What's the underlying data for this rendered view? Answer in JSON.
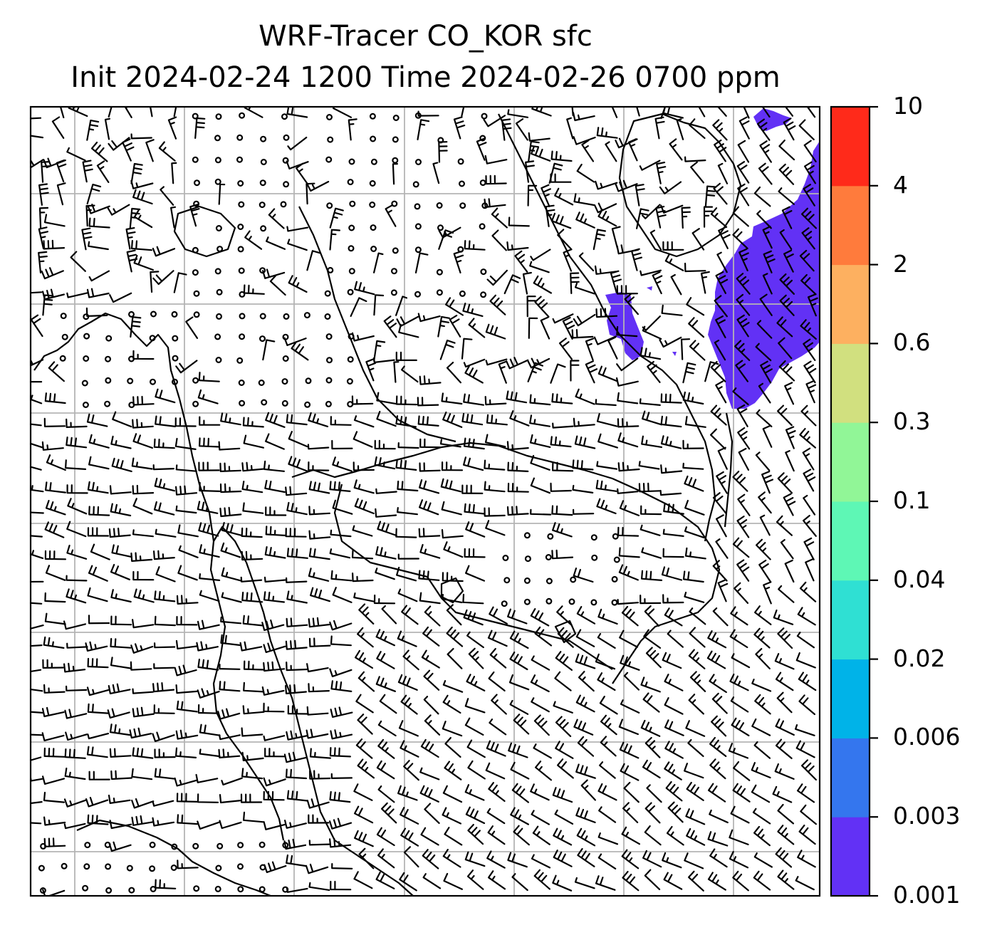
{
  "title": {
    "line1": "WRF-Tracer CO_KOR sfc",
    "line2": "Init 2024-02-24 1200 Time 2024-02-26 0700 ppm"
  },
  "colorbar": {
    "levels": [
      "0.001",
      "0.003",
      "0.006",
      "0.02",
      "0.04",
      "0.1",
      "0.3",
      "0.6",
      "2",
      "4",
      "10"
    ],
    "colors": [
      "#6231f5",
      "#3476ee",
      "#00b3e8",
      "#2fe0d3",
      "#5ef7b5",
      "#91f697",
      "#d1e07f",
      "#fdb060",
      "#ff7b3c",
      "#ff2a1a"
    ]
  },
  "map": {
    "gridlines": true,
    "field_color": "#6231f5",
    "barb_color": "#000000",
    "coastline_color": "#000000",
    "grid_color": "#b4b4b4"
  }
}
